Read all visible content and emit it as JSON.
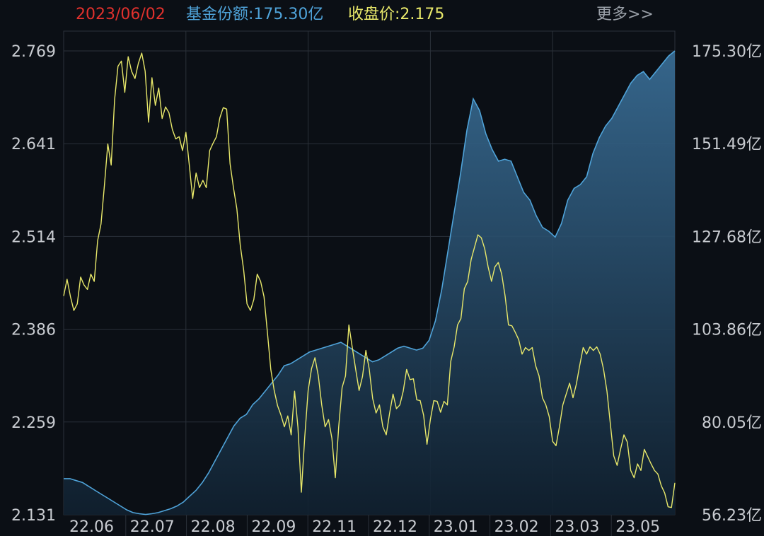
{
  "header": {
    "date": "2023/06/02",
    "share_label": "基金份额:",
    "share_value": "175.30亿",
    "close_label": "收盘价:",
    "close_value": "2.175",
    "more": "更多>>"
  },
  "colors": {
    "background": "#0b0f15",
    "grid": "#2b313a",
    "date": "#e0312d",
    "share": "#4fa3d9",
    "price": "#e8e86a",
    "more": "#9aa0a8",
    "tick": "#c8cbd0"
  },
  "chart_data": {
    "type": "line",
    "title": "",
    "y_left_ticks": [
      "2.769",
      "2.641",
      "2.514",
      "2.386",
      "2.259",
      "2.131"
    ],
    "y_right_ticks": [
      "175.30亿",
      "151.49亿",
      "127.68亿",
      "103.86亿",
      "80.05亿",
      "56.23亿"
    ],
    "y_left_range": [
      2.131,
      2.769
    ],
    "y_right_range": [
      56.23,
      175.3
    ],
    "x_ticks": [
      "22.06",
      "22.07",
      "22.08",
      "22.09",
      "22.11",
      "22.12",
      "23.01",
      "23.02",
      "23.03",
      "23.05"
    ],
    "grid": true,
    "series": [
      {
        "name": "收盘价",
        "axis": "left",
        "style": "line",
        "values": [
          2.432,
          2.455,
          2.431,
          2.412,
          2.421,
          2.458,
          2.447,
          2.441,
          2.462,
          2.452,
          2.508,
          2.531,
          2.584,
          2.641,
          2.612,
          2.702,
          2.748,
          2.755,
          2.712,
          2.761,
          2.741,
          2.731,
          2.752,
          2.766,
          2.741,
          2.671,
          2.732,
          2.694,
          2.718,
          2.676,
          2.692,
          2.684,
          2.661,
          2.648,
          2.651,
          2.632,
          2.657,
          2.612,
          2.566,
          2.601,
          2.581,
          2.591,
          2.581,
          2.632,
          2.642,
          2.651,
          2.677,
          2.691,
          2.689,
          2.614,
          2.581,
          2.552,
          2.502,
          2.468,
          2.421,
          2.412,
          2.427,
          2.462,
          2.452,
          2.431,
          2.382,
          2.331,
          2.302,
          2.281,
          2.268,
          2.252,
          2.267,
          2.241,
          2.301,
          2.251,
          2.162,
          2.238,
          2.302,
          2.332,
          2.347,
          2.322,
          2.282,
          2.252,
          2.262,
          2.236,
          2.182,
          2.252,
          2.306,
          2.322,
          2.392,
          2.361,
          2.331,
          2.302,
          2.321,
          2.357,
          2.331,
          2.291,
          2.271,
          2.282,
          2.252,
          2.241,
          2.271,
          2.297,
          2.277,
          2.282,
          2.301,
          2.331,
          2.317,
          2.318,
          2.289,
          2.288,
          2.268,
          2.228,
          2.262,
          2.288,
          2.287,
          2.272,
          2.287,
          2.282,
          2.342,
          2.362,
          2.392,
          2.401,
          2.442,
          2.452,
          2.482,
          2.499,
          2.516,
          2.512,
          2.497,
          2.472,
          2.452,
          2.472,
          2.478,
          2.462,
          2.432,
          2.392,
          2.391,
          2.382,
          2.372,
          2.352,
          2.361,
          2.357,
          2.361,
          2.336,
          2.322,
          2.292,
          2.282,
          2.266,
          2.232,
          2.226,
          2.252,
          2.282,
          2.297,
          2.312,
          2.292,
          2.311,
          2.337,
          2.361,
          2.352,
          2.362,
          2.357,
          2.362,
          2.352,
          2.331,
          2.301,
          2.256,
          2.212,
          2.199,
          2.221,
          2.241,
          2.231,
          2.192,
          2.182,
          2.201,
          2.192,
          2.221,
          2.211,
          2.201,
          2.192,
          2.187,
          2.171,
          2.161,
          2.142,
          2.141,
          2.175
        ]
      },
      {
        "name": "基金份额",
        "axis": "right",
        "style": "area",
        "values": [
          65.5,
          65.5,
          65.0,
          64.5,
          63.5,
          62.5,
          61.5,
          60.5,
          59.5,
          58.5,
          57.5,
          56.8,
          56.5,
          56.3,
          56.5,
          56.8,
          57.3,
          57.8,
          58.5,
          59.5,
          61.0,
          62.5,
          64.5,
          67.0,
          70.0,
          73.0,
          76.0,
          79.0,
          81.0,
          82.0,
          84.5,
          86.0,
          88.0,
          90.0,
          92.0,
          94.5,
          95.0,
          96.0,
          97.0,
          98.0,
          98.5,
          99.0,
          99.5,
          100.0,
          100.5,
          99.5,
          98.5,
          97.5,
          96.5,
          95.5,
          96.0,
          97.0,
          98.0,
          99.0,
          99.5,
          99.0,
          98.5,
          99.0,
          101.0,
          106.0,
          114.0,
          124.0,
          134.0,
          144.0,
          155.0,
          163.0,
          160.0,
          154.0,
          150.0,
          147.0,
          147.5,
          147.0,
          143.0,
          139.0,
          137.0,
          133.0,
          130.0,
          129.0,
          127.5,
          131.0,
          137.0,
          140.0,
          141.0,
          143.0,
          149.0,
          153.0,
          156.0,
          158.0,
          161.0,
          164.0,
          167.0,
          169.0,
          170.0,
          168.0,
          170.0,
          172.0,
          174.0,
          175.3
        ]
      }
    ]
  }
}
